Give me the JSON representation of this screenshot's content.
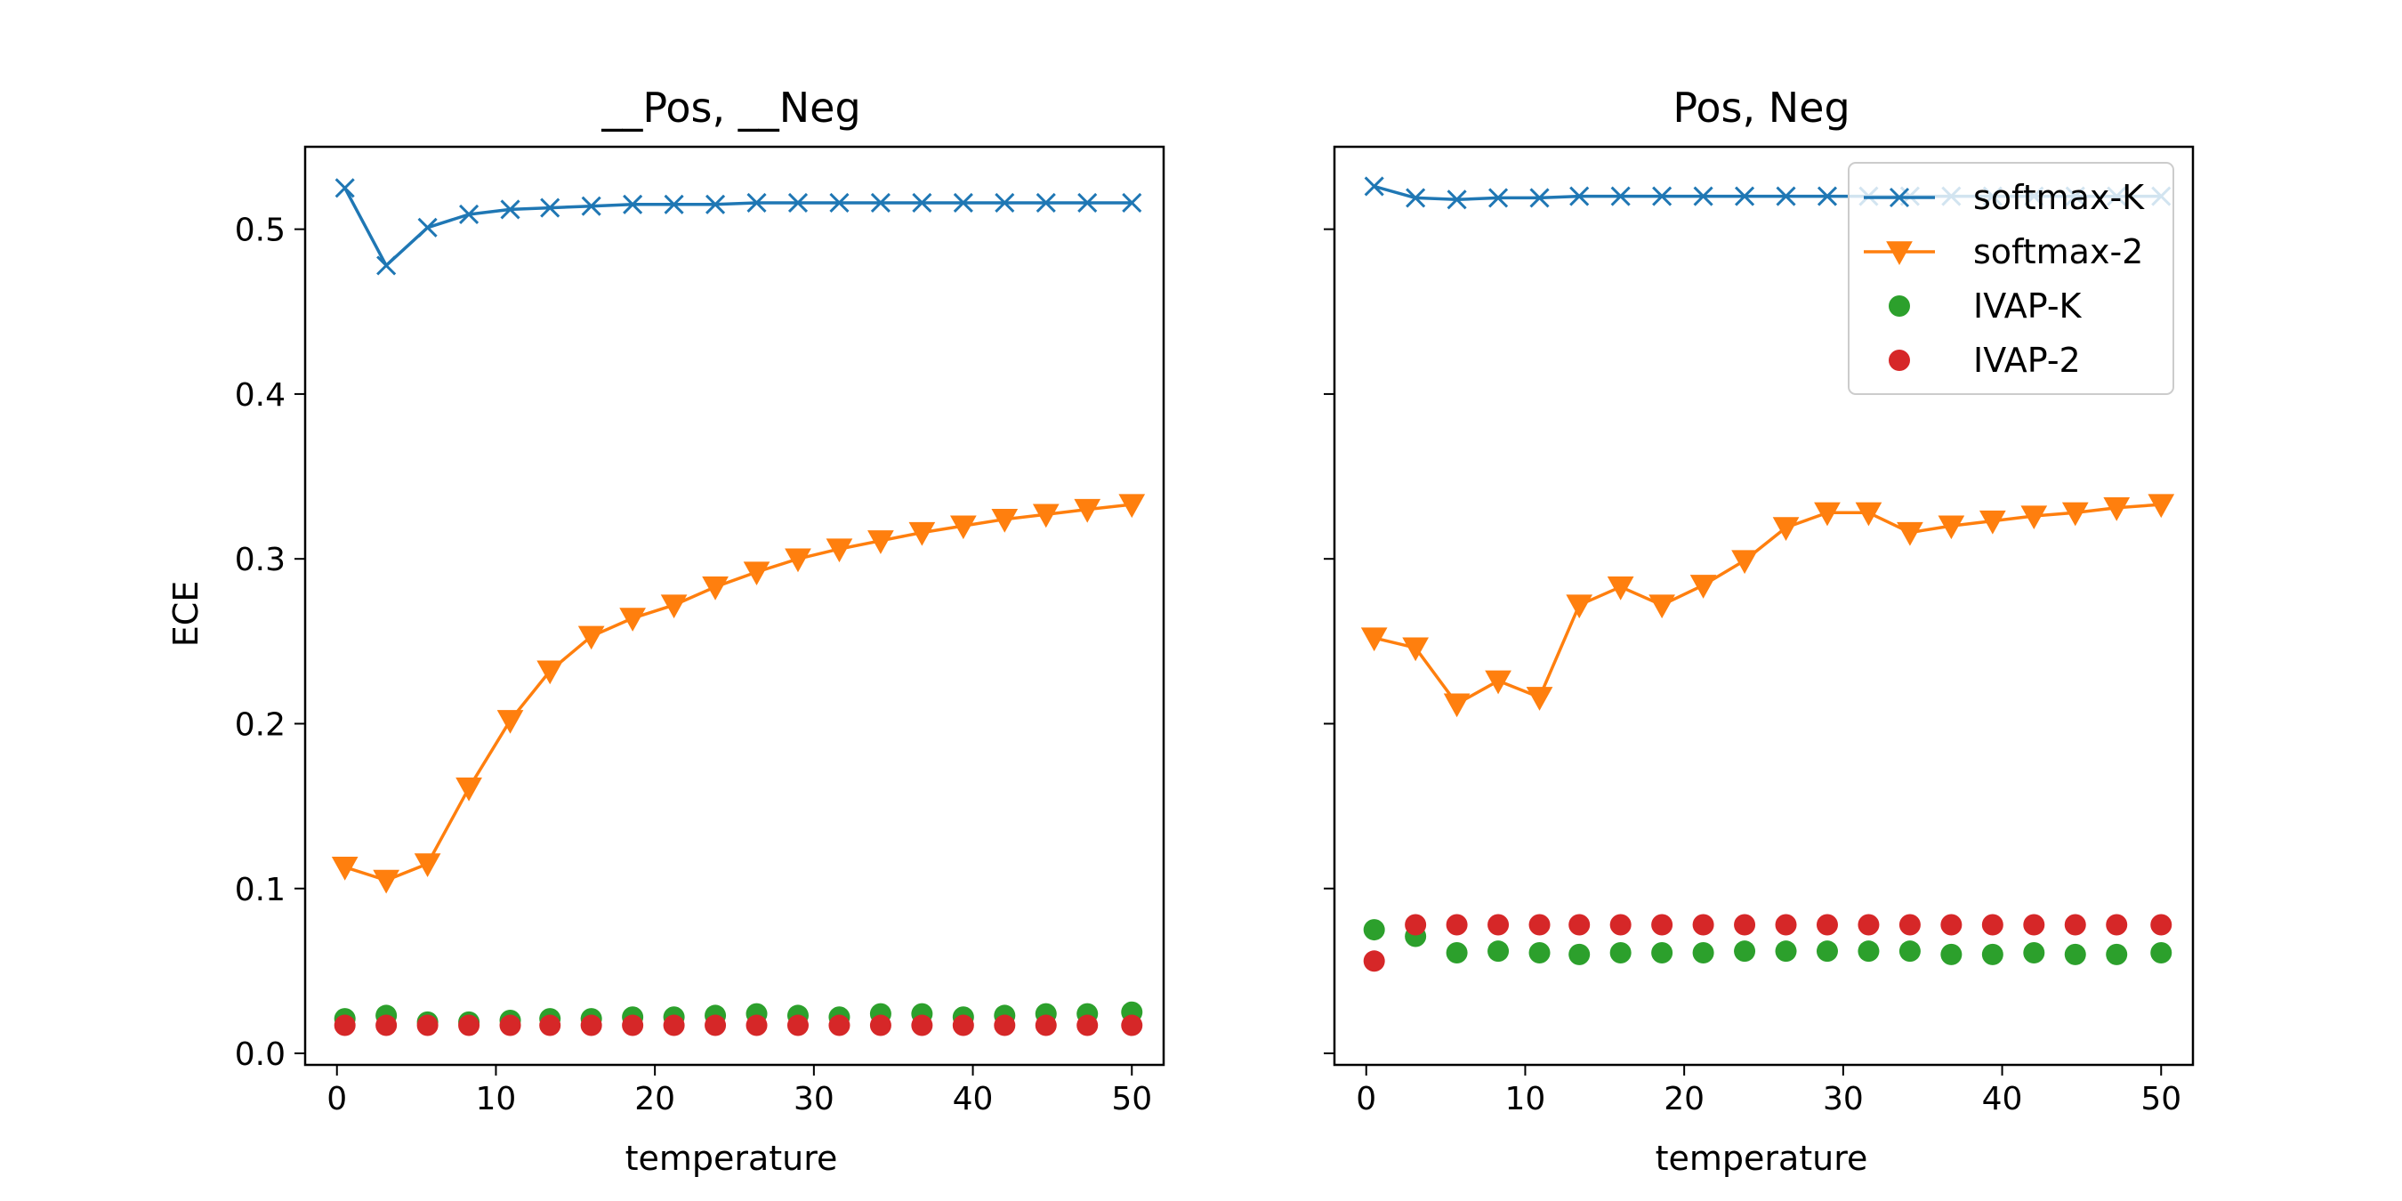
{
  "chart_data": [
    {
      "type": "line",
      "title": "__Pos, __Neg",
      "xlabel": "temperature",
      "ylabel": "ECE",
      "xlim": [
        -2,
        52
      ],
      "ylim": [
        -0.007,
        0.55
      ],
      "xticks": [
        0,
        10,
        20,
        30,
        40,
        50
      ],
      "yticks": [
        0.0,
        0.1,
        0.2,
        0.3,
        0.4,
        0.5
      ],
      "ytick_labels": [
        "0.0",
        "0.1",
        "0.2",
        "0.3",
        "0.4",
        "0.5"
      ],
      "x": [
        0.5,
        3.1,
        5.7,
        8.3,
        10.9,
        13.4,
        16.0,
        18.6,
        21.2,
        23.8,
        26.4,
        29.0,
        31.6,
        34.2,
        36.8,
        39.4,
        42.0,
        44.6,
        47.2,
        50.0
      ],
      "series": [
        {
          "name": "softmax-K",
          "marker": "x",
          "line": true,
          "color": "#1f77b4",
          "values": [
            0.525,
            0.478,
            0.501,
            0.509,
            0.512,
            0.513,
            0.514,
            0.515,
            0.515,
            0.515,
            0.516,
            0.516,
            0.516,
            0.516,
            0.516,
            0.516,
            0.516,
            0.516,
            0.516,
            0.516
          ]
        },
        {
          "name": "softmax-2",
          "marker": "triangle-down",
          "line": true,
          "color": "#ff7f0e",
          "values": [
            0.113,
            0.105,
            0.115,
            0.161,
            0.202,
            0.232,
            0.253,
            0.264,
            0.272,
            0.283,
            0.292,
            0.3,
            0.306,
            0.311,
            0.316,
            0.32,
            0.324,
            0.327,
            0.33,
            0.333
          ]
        },
        {
          "name": "IVAP-K",
          "marker": "circle",
          "line": false,
          "color": "#2ca02c",
          "values": [
            0.021,
            0.023,
            0.019,
            0.019,
            0.02,
            0.021,
            0.021,
            0.022,
            0.022,
            0.023,
            0.024,
            0.023,
            0.022,
            0.024,
            0.024,
            0.022,
            0.023,
            0.024,
            0.024,
            0.025
          ]
        },
        {
          "name": "IVAP-2",
          "marker": "circle",
          "line": false,
          "color": "#d62728",
          "values": [
            0.017,
            0.017,
            0.017,
            0.017,
            0.017,
            0.017,
            0.017,
            0.017,
            0.017,
            0.017,
            0.017,
            0.017,
            0.017,
            0.017,
            0.017,
            0.017,
            0.017,
            0.017,
            0.017,
            0.017
          ]
        }
      ]
    },
    {
      "type": "line",
      "title": "Pos, Neg",
      "xlabel": "temperature",
      "ylabel": "",
      "xlim": [
        -2,
        52
      ],
      "ylim": [
        -0.007,
        0.55
      ],
      "xticks": [
        0,
        10,
        20,
        30,
        40,
        50
      ],
      "yticks": [
        0.0,
        0.1,
        0.2,
        0.3,
        0.4,
        0.5
      ],
      "ytick_labels": [],
      "x": [
        0.5,
        3.1,
        5.7,
        8.3,
        10.9,
        13.4,
        16.0,
        18.6,
        21.2,
        23.8,
        26.4,
        29.0,
        31.6,
        34.2,
        36.8,
        39.4,
        42.0,
        44.6,
        47.2,
        50.0
      ],
      "legend": {
        "position": "upper right",
        "entries": [
          "softmax-K",
          "softmax-2",
          "IVAP-K",
          "IVAP-2"
        ]
      },
      "series": [
        {
          "name": "softmax-K",
          "marker": "x",
          "line": true,
          "color": "#1f77b4",
          "values": [
            0.526,
            0.519,
            0.518,
            0.519,
            0.519,
            0.52,
            0.52,
            0.52,
            0.52,
            0.52,
            0.52,
            0.52,
            0.52,
            0.52,
            0.52,
            0.52,
            0.52,
            0.52,
            0.52,
            0.52
          ]
        },
        {
          "name": "softmax-2",
          "marker": "triangle-down",
          "line": true,
          "color": "#ff7f0e",
          "values": [
            0.252,
            0.246,
            0.212,
            0.226,
            0.216,
            0.272,
            0.283,
            0.272,
            0.284,
            0.299,
            0.319,
            0.328,
            0.328,
            0.316,
            0.32,
            0.323,
            0.326,
            0.328,
            0.331,
            0.333
          ]
        },
        {
          "name": "IVAP-K",
          "marker": "circle",
          "line": false,
          "color": "#2ca02c",
          "values": [
            0.075,
            0.071,
            0.061,
            0.062,
            0.061,
            0.06,
            0.061,
            0.061,
            0.061,
            0.062,
            0.062,
            0.062,
            0.062,
            0.062,
            0.06,
            0.06,
            0.061,
            0.06,
            0.06,
            0.061
          ]
        },
        {
          "name": "IVAP-2",
          "marker": "circle",
          "line": false,
          "color": "#d62728",
          "values": [
            0.056,
            0.078,
            0.078,
            0.078,
            0.078,
            0.078,
            0.078,
            0.078,
            0.078,
            0.078,
            0.078,
            0.078,
            0.078,
            0.078,
            0.078,
            0.078,
            0.078,
            0.078,
            0.078,
            0.078
          ]
        }
      ]
    }
  ]
}
